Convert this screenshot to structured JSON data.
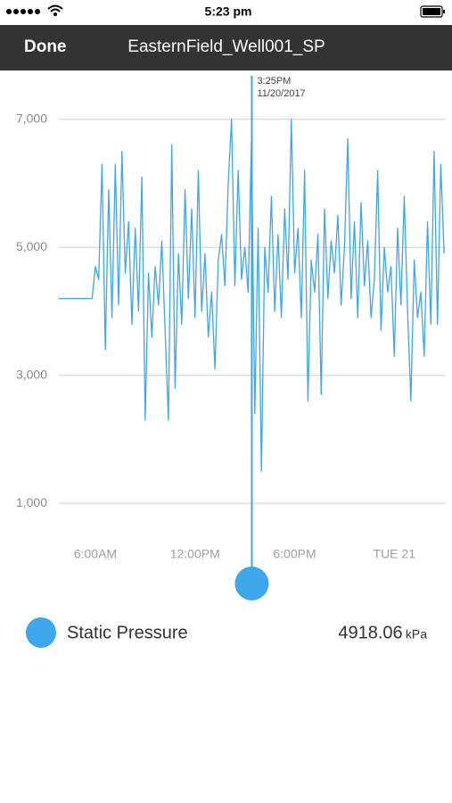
{
  "status_bar": {
    "time": "5:23 pm"
  },
  "nav": {
    "button": "Done",
    "title": "EasternField_Well001_SP"
  },
  "chart_data": {
    "type": "line",
    "x": [
      3.8,
      5.8,
      6.0,
      6.2,
      6.4,
      6.6,
      6.8,
      7.0,
      7.2,
      7.4,
      7.6,
      7.8,
      8.0,
      8.2,
      8.4,
      8.6,
      8.8,
      9.0,
      9.2,
      9.4,
      9.6,
      9.8,
      10.0,
      10.2,
      10.4,
      10.6,
      10.8,
      11.0,
      11.2,
      11.4,
      11.6,
      11.8,
      12.0,
      12.2,
      12.4,
      12.6,
      12.8,
      13.0,
      13.2,
      13.4,
      13.6,
      13.8,
      14.0,
      14.2,
      14.4,
      14.6,
      14.8,
      15.0,
      15.2,
      15.4,
      15.6,
      15.8,
      16.0,
      16.2,
      16.4,
      16.6,
      16.8,
      17.0,
      17.2,
      17.4,
      17.6,
      17.8,
      18.0,
      18.2,
      18.4,
      18.6,
      18.8,
      19.0,
      19.2,
      19.4,
      19.6,
      19.8,
      20.0,
      20.2,
      20.4,
      20.6,
      20.8,
      21.0,
      21.2,
      21.4,
      21.6,
      21.8,
      22.0,
      22.2,
      22.4,
      22.6,
      22.8,
      23.0,
      23.2,
      23.4,
      23.6,
      23.8,
      24.0,
      24.2,
      24.4,
      24.6,
      24.8,
      25.0,
      25.2,
      25.4,
      25.6,
      25.8,
      26.0,
      26.2,
      26.4,
      26.6,
      26.8,
      27.0
    ],
    "series": [
      {
        "name": "Static Pressure",
        "color": "#3ea6ea",
        "values": [
          4200,
          4200,
          4700,
          4500,
          6300,
          3400,
          5900,
          3900,
          6300,
          4100,
          6500,
          4600,
          5400,
          3800,
          5300,
          4000,
          6100,
          2300,
          4600,
          3600,
          4700,
          4100,
          5100,
          3700,
          2300,
          6600,
          2800,
          4900,
          3800,
          5900,
          4200,
          5600,
          3900,
          6200,
          4000,
          4900,
          3600,
          4300,
          3100,
          4800,
          5200,
          4400,
          6000,
          7000,
          4400,
          6200,
          4500,
          5000,
          4300,
          6700,
          2400,
          5300,
          1500,
          5000,
          4300,
          5800,
          4000,
          5200,
          3900,
          5600,
          4500,
          7000,
          4600,
          5300,
          3900,
          6200,
          2600,
          4800,
          4300,
          5200,
          2700,
          5600,
          4200,
          5100,
          4600,
          5500,
          4100,
          5000,
          6700,
          4200,
          5400,
          3900,
          5700,
          4400,
          5100,
          3900,
          4500,
          6200,
          3700,
          5000,
          4300,
          4700,
          3300,
          5300,
          4100,
          5800,
          4000,
          2600,
          4800,
          3900,
          4300,
          3300,
          5400,
          3800,
          6500,
          3800,
          6300,
          4900
        ]
      }
    ],
    "xlim": [
      3.8,
      27.1
    ],
    "xticks": [
      {
        "value": 6,
        "label": "6:00AM"
      },
      {
        "value": 12,
        "label": "12:00PM"
      },
      {
        "value": 18,
        "label": "6:00PM"
      },
      {
        "value": 24,
        "label": "TUE 21"
      }
    ],
    "ylim": [
      500,
      7750
    ],
    "yticks": [
      {
        "value": 1000,
        "label": "1,000"
      },
      {
        "value": 3000,
        "label": "3,000"
      },
      {
        "value": 5000,
        "label": "5,000"
      },
      {
        "value": 7000,
        "label": "7,000"
      }
    ],
    "grid": true,
    "cursor": {
      "x": 15.42,
      "time": "3:25PM",
      "date": "11/20/2017",
      "value": 4918.06,
      "unit": "kPa"
    }
  }
}
